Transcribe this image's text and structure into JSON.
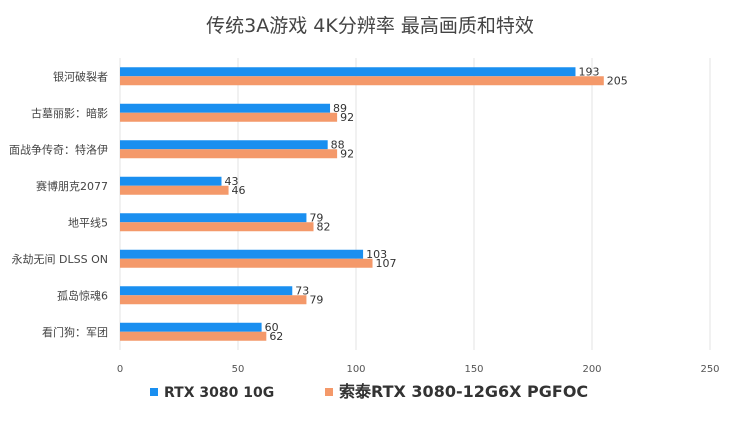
{
  "chart_data": {
    "type": "bar",
    "orientation": "horizontal",
    "title": "传统3A游戏 4K分辨率 最高画质和特效",
    "categories": [
      "银河破裂者",
      "古墓丽影：暗影",
      "面战争传奇：特洛伊",
      "赛博朋克2077",
      "地平线5",
      "永劫无间 DLSS ON",
      "孤岛惊魂6",
      "看门狗：军团"
    ],
    "series": [
      {
        "name": "RTX 3080 10G",
        "color": "#1a8ff0",
        "values": [
          193,
          89,
          88,
          43,
          79,
          103,
          73,
          60
        ]
      },
      {
        "name": "索泰RTX 3080-12G6X PGFOC",
        "color": "#f4996a",
        "values": [
          205,
          92,
          92,
          46,
          82,
          107,
          79,
          62
        ]
      }
    ],
    "xlim": [
      0,
      250
    ],
    "xticks": [
      "0",
      "50",
      "100",
      "150",
      "200",
      "250"
    ],
    "xtick_values": [
      0,
      50,
      100,
      150,
      200,
      250
    ],
    "grid": true,
    "legend_position": "bottom"
  }
}
